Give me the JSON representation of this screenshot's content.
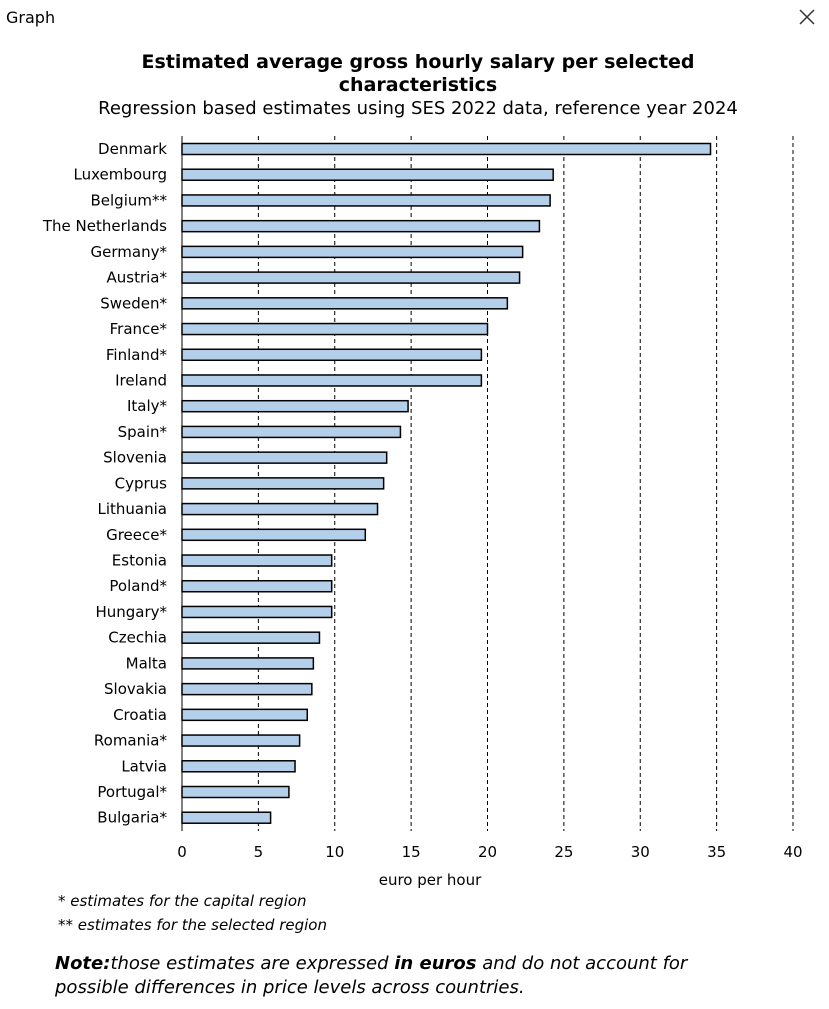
{
  "window": {
    "title": "Graph",
    "close_icon": "close-icon"
  },
  "chart_data": {
    "type": "bar",
    "orientation": "horizontal",
    "title": "Estimated average gross hourly salary per selected characteristics",
    "subtitle": "Regression based estimates using SES 2022 data, reference year 2024",
    "xlabel": "euro per hour",
    "ylabel": "",
    "xlim": [
      0,
      40
    ],
    "xticks": [
      0,
      5,
      10,
      15,
      20,
      25,
      30,
      35,
      40
    ],
    "grid": "vertical dashed",
    "bar_color": "#b4cfea",
    "bar_edge_color": "#000000",
    "categories": [
      "Denmark",
      "Luxembourg",
      "Belgium**",
      "The Netherlands",
      "Germany*",
      "Austria*",
      "Sweden*",
      "France*",
      "Finland*",
      "Ireland",
      "Italy*",
      "Spain*",
      "Slovenia",
      "Cyprus",
      "Lithuania",
      "Greece*",
      "Estonia",
      "Poland*",
      "Hungary*",
      "Czechia",
      "Malta",
      "Slovakia",
      "Croatia",
      "Romania*",
      "Latvia",
      "Portugal*",
      "Bulgaria*"
    ],
    "values": [
      34.6,
      24.3,
      24.1,
      23.4,
      22.3,
      22.1,
      21.3,
      20.0,
      19.6,
      19.6,
      14.8,
      14.3,
      13.4,
      13.2,
      12.8,
      12.0,
      9.8,
      9.8,
      9.8,
      9.0,
      8.6,
      8.5,
      8.2,
      7.7,
      7.4,
      7.0,
      5.8
    ]
  },
  "footnotes": {
    "capital": "* estimates for the capital region",
    "selected": "** estimates for the selected region"
  },
  "note": {
    "label": "Note:",
    "text_before": "those estimates are expressed ",
    "emphasis": "in euros",
    "text_after": " and do not account for possible differences in price levels across countries."
  }
}
